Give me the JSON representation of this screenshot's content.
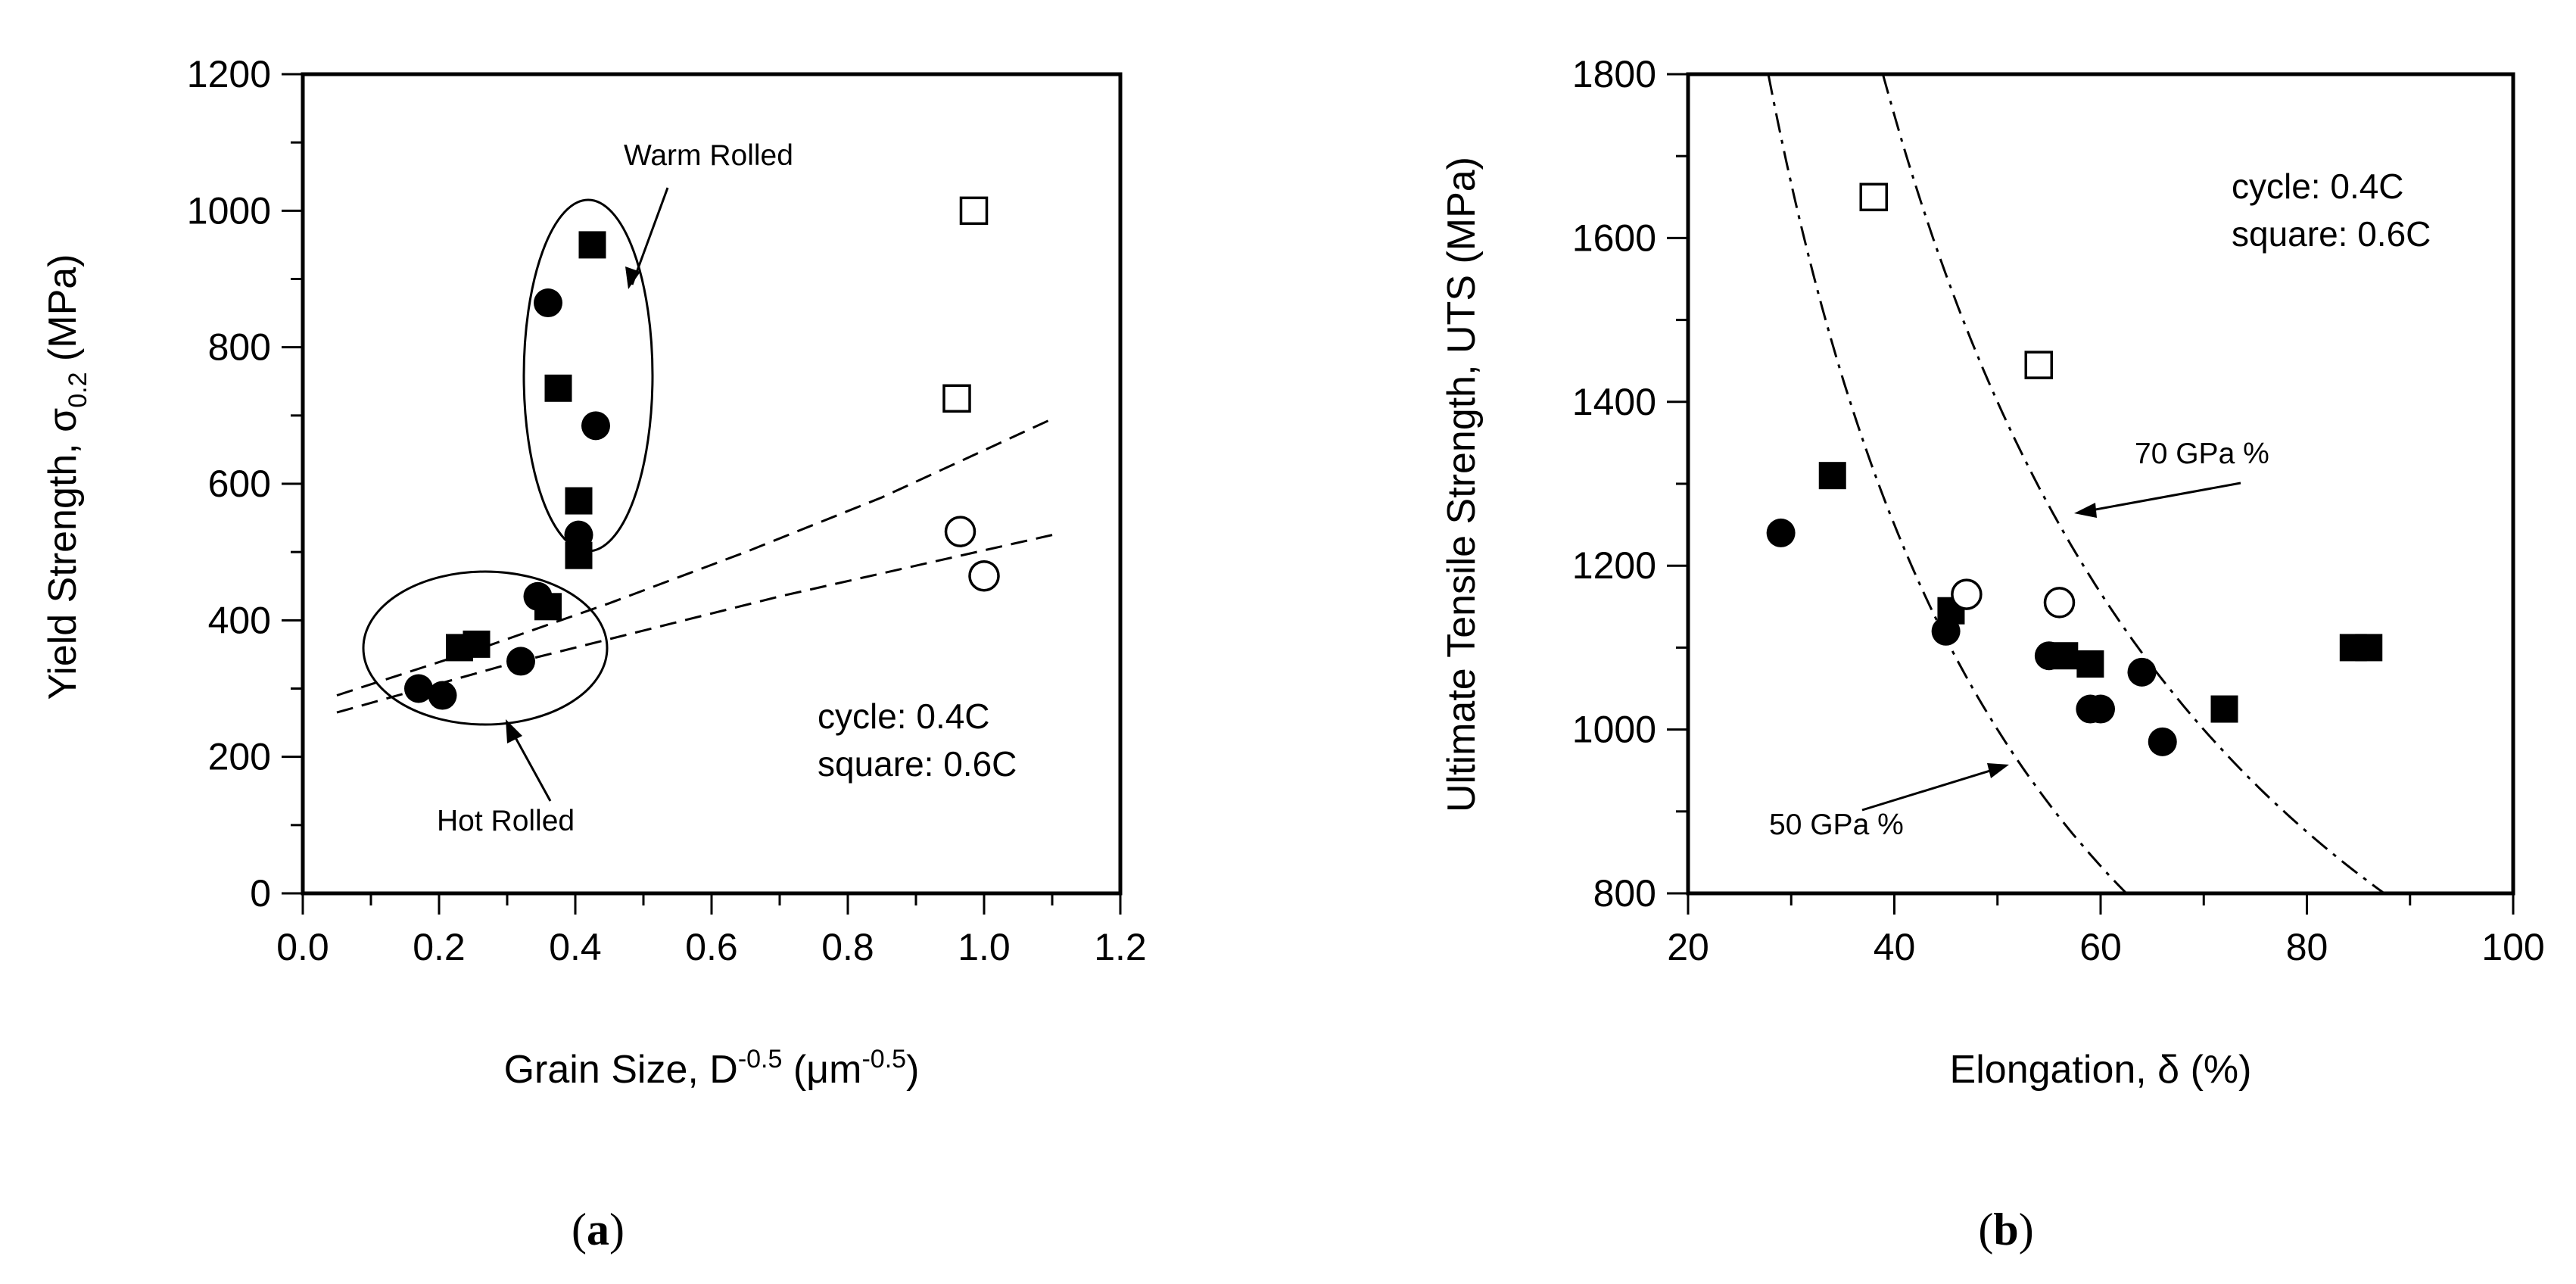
{
  "chart_data": [
    {
      "type": "scatter",
      "panel_label": "(a)",
      "panel_letter": "a",
      "xlabel": {
        "main": "Grain Size, D",
        "sup1": "-0.5",
        "mid": " (μm",
        "sup2": "-0.5",
        "end": ")"
      },
      "ylabel": {
        "main": "Yield Strength, σ",
        "sub": "0.2",
        "end": " (MPa)"
      },
      "xlim": [
        0.0,
        1.2
      ],
      "ylim": [
        0,
        1200
      ],
      "x_ticks": [
        "0.0",
        "0.2",
        "0.4",
        "0.6",
        "0.8",
        "1.0",
        "1.2"
      ],
      "y_ticks": [
        "0",
        "200",
        "400",
        "600",
        "800",
        "1000",
        "1200"
      ],
      "legend_lines": [
        "cycle: 0.4C",
        "square: 0.6C"
      ],
      "annotations": {
        "warm": "Warm Rolled",
        "hot": "Hot Rolled"
      },
      "series": [
        {
          "marker": "filled-circle",
          "points": [
            [
              0.17,
              300
            ],
            [
              0.205,
              290
            ],
            [
              0.32,
              340
            ],
            [
              0.345,
              435
            ],
            [
              0.36,
              865
            ],
            [
              0.405,
              525
            ],
            [
              0.43,
              685
            ]
          ]
        },
        {
          "marker": "filled-square",
          "points": [
            [
              0.23,
              360
            ],
            [
              0.255,
              365
            ],
            [
              0.36,
              420
            ],
            [
              0.375,
              740
            ],
            [
              0.405,
              575
            ],
            [
              0.405,
              495
            ],
            [
              0.425,
              950
            ]
          ]
        },
        {
          "marker": "open-circle",
          "points": [
            [
              0.965,
              530
            ],
            [
              1.0,
              465
            ]
          ]
        },
        {
          "marker": "open-square",
          "points": [
            [
              0.96,
              725
            ],
            [
              0.985,
              1000
            ]
          ]
        }
      ],
      "trend_lines": [
        {
          "style": "dashed",
          "points": [
            [
              0.05,
              290
            ],
            [
              0.25,
              355
            ],
            [
              0.45,
              425
            ],
            [
              0.65,
              500
            ],
            [
              0.85,
              580
            ],
            [
              1.1,
              695
            ]
          ]
        },
        {
          "style": "dashed",
          "points": [
            [
              0.05,
              265
            ],
            [
              0.3,
              335
            ],
            [
              0.5,
              385
            ],
            [
              0.7,
              435
            ],
            [
              0.9,
              480
            ],
            [
              1.1,
              525
            ]
          ]
        }
      ]
    },
    {
      "type": "scatter",
      "panel_label": "(b)",
      "panel_letter": "b",
      "xlabel": {
        "main": "Elongation, δ (%)"
      },
      "ylabel": {
        "main": "Ultimate Tensile Strength, UTS (MPa)"
      },
      "xlim": [
        20,
        100
      ],
      "ylim": [
        800,
        1800
      ],
      "x_ticks": [
        "20",
        "40",
        "60",
        "80",
        "100"
      ],
      "y_ticks": [
        "800",
        "1000",
        "1200",
        "1400",
        "1600",
        "1800"
      ],
      "legend_lines": [
        "cycle: 0.4C",
        "square: 0.6C"
      ],
      "annotations": {
        "c70": "70 GPa %",
        "c50": "50 GPa %"
      },
      "series": [
        {
          "marker": "filled-circle",
          "points": [
            [
              29,
              1240
            ],
            [
              45,
              1120
            ],
            [
              55,
              1090
            ],
            [
              59,
              1025
            ],
            [
              60,
              1025
            ],
            [
              64,
              1070
            ],
            [
              66,
              985
            ]
          ]
        },
        {
          "marker": "filled-square",
          "points": [
            [
              34,
              1310
            ],
            [
              45.5,
              1145
            ],
            [
              56.5,
              1090
            ],
            [
              59,
              1080
            ],
            [
              72,
              1025
            ],
            [
              84.5,
              1100
            ],
            [
              86,
              1100
            ]
          ]
        },
        {
          "marker": "open-circle",
          "points": [
            [
              47,
              1165
            ],
            [
              56,
              1155
            ]
          ]
        },
        {
          "marker": "open-square",
          "points": [
            [
              38,
              1650
            ],
            [
              54,
              1445
            ]
          ]
        }
      ],
      "curves": [
        {
          "label": "70 GPa %",
          "style": "dash-dot",
          "constant": 70000,
          "x_range": [
            38.9,
            87.5
          ]
        },
        {
          "label": "50 GPa %",
          "style": "dash-dot",
          "constant": 50000,
          "x_range": [
            27.8,
            62.5
          ]
        }
      ]
    }
  ]
}
